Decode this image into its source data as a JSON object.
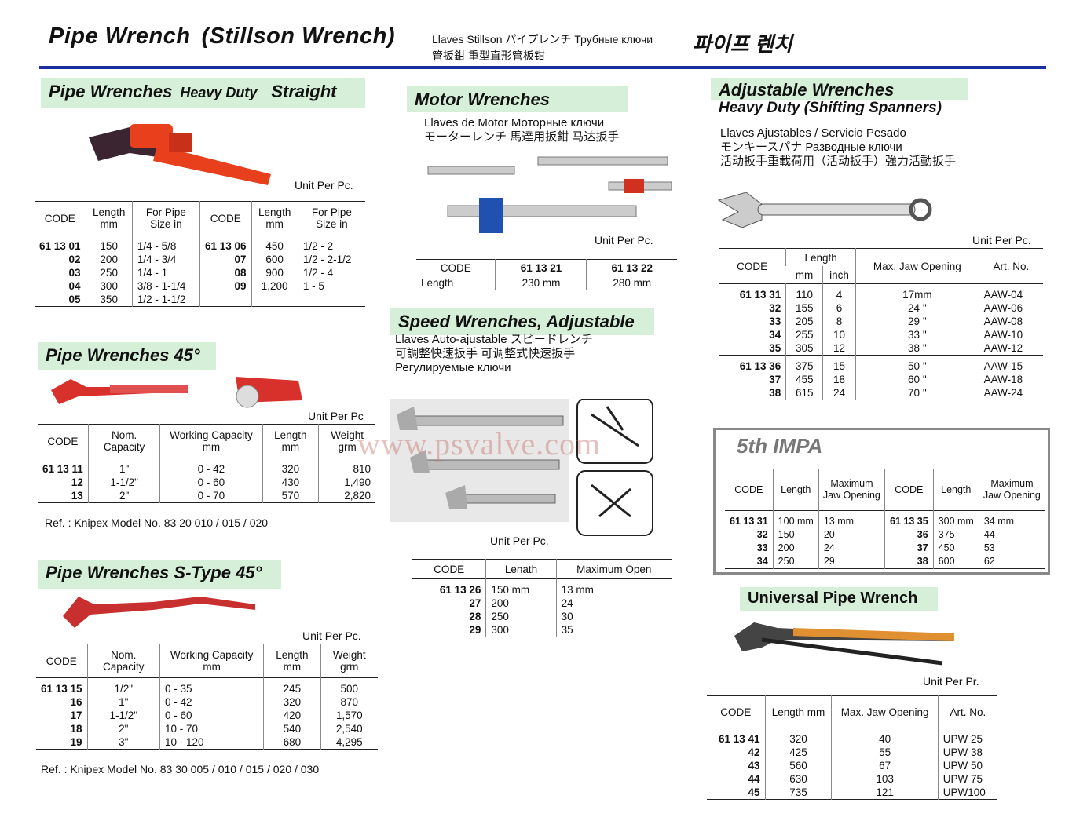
{
  "header": {
    "title_en": "Pipe Wrench",
    "title_paren": "(Stillson Wrench)",
    "ml_line1": "Llaves Stillson  パイプレンチ  Трубные ключи",
    "ml_line2": "管扳鉗  重型直形管板钳",
    "title_ko": "파이프 렌치"
  },
  "colors": {
    "accent_line": "#1c2fa0",
    "title_box": "#d6efd8",
    "tool_red": "#e8401c"
  },
  "watermark": "www.psvalve.com",
  "s1": {
    "title": "Pipe Wrenches",
    "title_sm": "Heavy Duty",
    "title_right": "Straight",
    "unit": "Unit Per Pc.",
    "headers": [
      "CODE",
      "Length mm",
      "For Pipe Size in",
      "CODE",
      "Length mm",
      "For Pipe Size in"
    ],
    "groups": [
      [
        [
          "61 13 01",
          "150",
          "1/4 - 5/8",
          "61 13 06",
          "450",
          "1/2 - 2"
        ],
        [
          "02",
          "200",
          "1/4 - 3/4",
          "07",
          "600",
          "1/2 - 2-1/2"
        ],
        [
          "03",
          "250",
          "1/4 - 1",
          "08",
          "900",
          "1/2 - 4"
        ],
        [
          "04",
          "300",
          "3/8 - 1-1/4",
          "09",
          "1,200",
          "1  - 5"
        ],
        [
          "05",
          "350",
          "1/2 - 1-1/2",
          "",
          "",
          ""
        ]
      ]
    ]
  },
  "s2": {
    "title": "Pipe Wrenches 45°",
    "unit": "Unit Per Pc",
    "ref": "Ref. : Knipex Model No. 83 20 010 / 015 / 020",
    "headers": [
      "CODE",
      "Nom. Capacity",
      "Working Capacity mm",
      "Length mm",
      "Weight grm"
    ],
    "groups": [
      [
        [
          "61 13 11",
          "1\"",
          "0 - 42",
          "320",
          "810"
        ],
        [
          "12",
          "1-1/2\"",
          "0 - 60",
          "430",
          "1,490"
        ],
        [
          "13",
          "2\"",
          "0 - 70",
          "570",
          "2,820"
        ]
      ]
    ]
  },
  "s3": {
    "title": "Pipe Wrenches S-Type 45°",
    "unit": "Unit Per Pc.",
    "ref": "Ref. : Knipex Model No. 83 30 005 / 010 / 015 / 020 / 030",
    "headers": [
      "CODE",
      "Nom. Capacity",
      "Working Capacity mm",
      "Length mm",
      "Weight grm"
    ],
    "groups": [
      [
        [
          "61 13 15",
          "1/2\"",
          "0 -  35",
          "245",
          "500"
        ],
        [
          "16",
          "1\"",
          "0 -  42",
          "320",
          "870"
        ],
        [
          "17",
          "1-1/2\"",
          "0 -  60",
          "420",
          "1,570"
        ],
        [
          "18",
          "2\"",
          "10 -  70",
          "540",
          "2,540"
        ],
        [
          "19",
          "3\"",
          "10 - 120",
          "680",
          "4,295"
        ]
      ]
    ]
  },
  "motor": {
    "title": "Motor Wrenches",
    "sub1": "Llaves de Motor  Моторные ключи",
    "sub2": "モーターレンチ  馬達用扳鉗   马达扳手",
    "unit": "Unit Per Pc.",
    "headers": [
      "CODE",
      "61 13 21",
      "61 13 22"
    ],
    "groups": [
      [
        [
          "Length",
          "230 mm",
          "280 mm"
        ]
      ]
    ]
  },
  "speed": {
    "title": "Speed Wrenches, Adjustable",
    "sub1": "Llaves Auto-ajustable  スピードレンチ",
    "sub2": "可調整快速扳手  可调整式快速扳手",
    "sub3": "Регулируемые ключи",
    "unit": "Unit Per Pc.",
    "headers": [
      "CODE",
      "Lenath",
      "Maximum Open"
    ],
    "groups": [
      [
        [
          "61 13 26",
          "150 mm",
          "13 mm"
        ],
        [
          "27",
          "200",
          "24"
        ],
        [
          "28",
          "250",
          "30"
        ],
        [
          "29",
          "300",
          "35"
        ]
      ]
    ]
  },
  "adj": {
    "title": "Adjustable Wrenches",
    "title2": "Heavy Duty  (Shifting Spanners)",
    "sub1": "Llaves Ajustables / Servicio Pesado",
    "sub2": "モンキースパナ  Разводные ключи",
    "sub3": "活动扳手重載荷用（活动扳手）強力活動扳手",
    "unit": "Unit Per Pc.",
    "headers": [
      "CODE",
      "Length",
      "mm",
      "inch",
      "Max. Jaw Opening",
      "Art. No."
    ],
    "groups": [
      [
        [
          "61 13 31",
          "110",
          "4",
          "17mm",
          "AAW-04"
        ],
        [
          "32",
          "155",
          "6",
          "24  \"",
          "AAW-06"
        ],
        [
          "33",
          "205",
          "8",
          "29  \"",
          "AAW-08"
        ],
        [
          "34",
          "255",
          "10",
          "33  \"",
          "AAW-10"
        ],
        [
          "35",
          "305",
          "12",
          "38  \"",
          "AAW-12"
        ]
      ],
      [
        [
          "61 13 36",
          "375",
          "15",
          "50  \"",
          "AAW-15"
        ],
        [
          "37",
          "455",
          "18",
          "60  \"",
          "AAW-18"
        ],
        [
          "38",
          "615",
          "24",
          "70  \"",
          "AAW-24"
        ]
      ]
    ]
  },
  "impa": {
    "title": "5th IMPA",
    "headers": [
      "CODE",
      "Length",
      "Maximum Jaw Opening",
      "CODE",
      "Length",
      "Maximum Jaw Opening"
    ],
    "groups": [
      [
        [
          "61 13 31",
          "100 mm",
          "13 mm",
          "61 13 35",
          "300 mm",
          "34 mm"
        ],
        [
          "32",
          "150",
          "20",
          "36",
          "375",
          "44"
        ],
        [
          "33",
          "200",
          "24",
          "37",
          "450",
          "53"
        ],
        [
          "34",
          "250",
          "29",
          "38",
          "600",
          "62"
        ]
      ]
    ]
  },
  "univ": {
    "title": "Universal Pipe Wrench",
    "unit": "Unit Per Pr.",
    "headers": [
      "CODE",
      "Length mm",
      "Max. Jaw Opening",
      "Art. No."
    ],
    "groups": [
      [
        [
          "61 13 41",
          "320",
          "40",
          "UPW  25"
        ],
        [
          "42",
          "425",
          "55",
          "UPW  38"
        ],
        [
          "43",
          "560",
          "67",
          "UPW  50"
        ],
        [
          "44",
          "630",
          "103",
          "UPW  75"
        ],
        [
          "45",
          "735",
          "121",
          "UPW100"
        ]
      ]
    ]
  }
}
